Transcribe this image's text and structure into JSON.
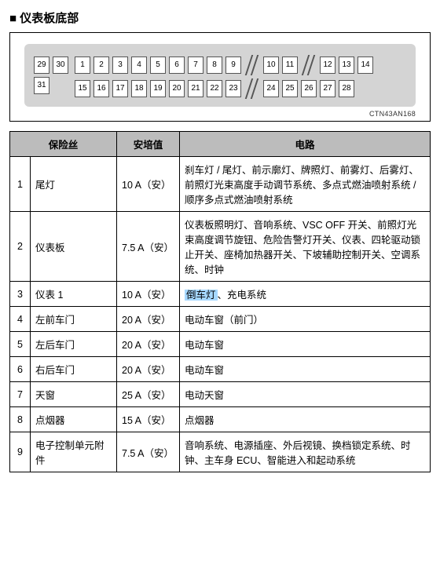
{
  "section_title": "仪表板底部",
  "diagram": {
    "label": "CTN43AN168",
    "left_row1": [
      "29",
      "30"
    ],
    "left_row2": [
      "31"
    ],
    "row1_a": [
      "1",
      "2",
      "3",
      "4",
      "5",
      "6",
      "7",
      "8",
      "9"
    ],
    "row1_b": [
      "10",
      "11"
    ],
    "row1_c": [
      "12",
      "13",
      "14"
    ],
    "row2_a": [
      "15",
      "16",
      "17",
      "18",
      "19",
      "20",
      "21",
      "22",
      "23"
    ],
    "row2_b": [
      "24",
      "25",
      "26",
      "27",
      "28"
    ]
  },
  "table": {
    "headers": {
      "fuse": "保险丝",
      "amp": "安培值",
      "circuit": "电路"
    },
    "rows": [
      {
        "n": "1",
        "name": "尾灯",
        "amp": "10 A（安）",
        "circuit": "刹车灯 / 尾灯、前示廓灯、牌照灯、前雾灯、后雾灯、前照灯光束高度手动调节系统、多点式燃油喷射系统 / 顺序多点式燃油喷射系统"
      },
      {
        "n": "2",
        "name": "仪表板",
        "amp": "7.5 A（安）",
        "circuit": "仪表板照明灯、音响系统、VSC OFF 开关、前照灯光束高度调节旋钮、危险告警灯开关、仪表、四轮驱动锁止开关、座椅加热器开关、下坡辅助控制开关、空调系统、时钟"
      },
      {
        "n": "3",
        "name": "仪表 1",
        "amp": "10 A（安）",
        "circuit_pre_hl": "",
        "hl": "倒车灯",
        "circuit_post_hl": "、充电系统"
      },
      {
        "n": "4",
        "name": "左前车门",
        "amp": "20 A（安）",
        "circuit": "电动车窗（前门）"
      },
      {
        "n": "5",
        "name": "左后车门",
        "amp": "20 A（安）",
        "circuit": "电动车窗"
      },
      {
        "n": "6",
        "name": "右后车门",
        "amp": "20 A（安）",
        "circuit": "电动车窗"
      },
      {
        "n": "7",
        "name": "天窗",
        "amp": "25 A（安）",
        "circuit": "电动天窗"
      },
      {
        "n": "8",
        "name": "点烟器",
        "amp": "15 A（安）",
        "circuit": "点烟器"
      },
      {
        "n": "9",
        "name": "电子控制单元附件",
        "amp": "7.5 A（安）",
        "circuit": "音响系统、电源插座、外后视镜、换档锁定系统、时钟、主车身 ECU、智能进入和起动系统"
      }
    ]
  }
}
